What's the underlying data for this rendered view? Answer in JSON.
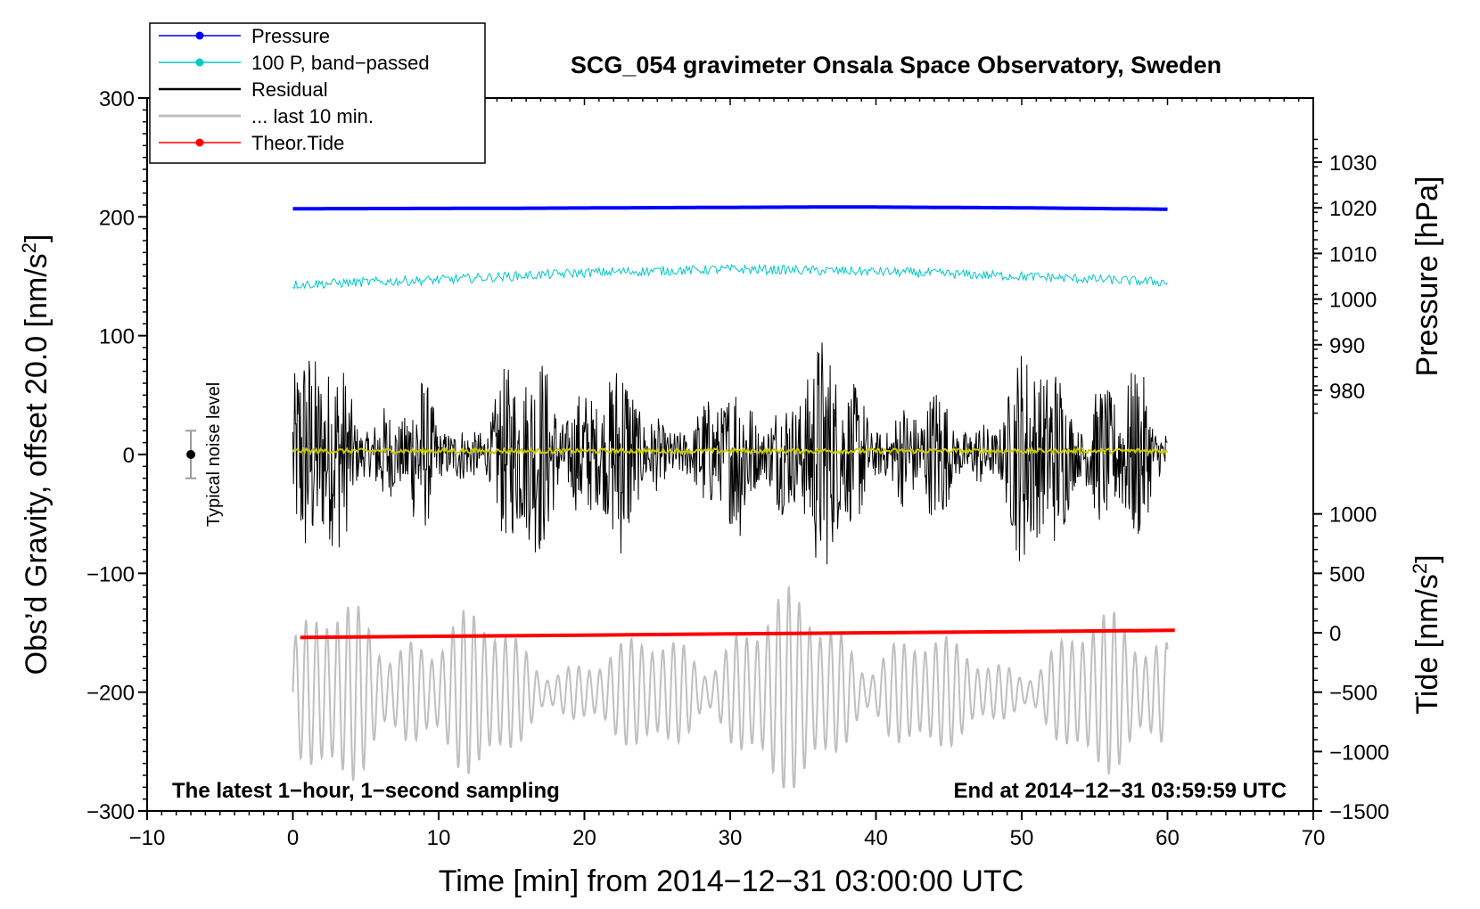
{
  "chart_data": {
    "type": "line",
    "title": "SCG_054 gravimeter Onsala Space Observatory, Sweden",
    "xlabel": "Time [min] from 2014−12−31 03:00:00 UTC",
    "ylabel": "Obs’d Gravity, offset 20.0 [nm/s²]",
    "xlim": [
      -10,
      70
    ],
    "ylim": [
      -300,
      300
    ],
    "x_ticks": [
      -10,
      0,
      10,
      20,
      30,
      40,
      50,
      60,
      70
    ],
    "x_tick_labels": [
      "−10",
      "0",
      "10",
      "20",
      "30",
      "40",
      "50",
      "60",
      "70"
    ],
    "y_ticks": [
      -300,
      -200,
      -100,
      0,
      100,
      200,
      300
    ],
    "y_tick_labels": [
      "−300",
      "−200",
      "−100",
      "0",
      "100",
      "200",
      "300"
    ],
    "right_axis_pressure": {
      "label": "Pressure [hPa]",
      "ticks": [
        980,
        990,
        1000,
        1010,
        1020,
        1030
      ],
      "tick_labels": [
        "980",
        "990",
        "1000",
        "1010",
        "1020",
        "1030"
      ],
      "anchor": [
        [
          980,
          54
        ],
        [
          1030,
          246
        ]
      ]
    },
    "right_axis_tide": {
      "label": "Tide [nm/s²]",
      "ticks": [
        -1500,
        -1000,
        -500,
        0,
        500,
        1000
      ],
      "tick_labels": [
        "−1500",
        "−1000",
        "−500",
        "0",
        "500",
        "1000"
      ],
      "anchor": [
        [
          -1500,
          -300
        ],
        [
          1000,
          -50
        ]
      ]
    },
    "legend": {
      "position": "top-left",
      "entries": [
        {
          "label": "Pressure",
          "color": "#0000ff",
          "marker": true
        },
        {
          "label": "100 P, band−passed",
          "color": "#00c8c8",
          "marker": true
        },
        {
          "label": "Residual",
          "color": "#000000",
          "marker": false
        },
        {
          "label": "... last 10 min.",
          "color": "#bfbfbf",
          "marker": false
        },
        {
          "label": "Theor.Tide",
          "color": "#ff0000",
          "marker": true
        }
      ]
    },
    "series": [
      {
        "name": "Pressure",
        "color": "#0000ff",
        "axis": "pressure",
        "x_range": [
          0,
          60
        ],
        "points": [
          [
            0,
            1019.8
          ],
          [
            15,
            1019.9
          ],
          [
            30,
            1020.1
          ],
          [
            38,
            1020.2
          ],
          [
            50,
            1020.0
          ],
          [
            60,
            1019.7
          ]
        ]
      },
      {
        "name": "100 P, band−passed",
        "color": "#00c8c8",
        "axis": "gravity",
        "x_range": [
          0,
          60
        ],
        "baseline": [
          [
            0,
            143
          ],
          [
            10,
            147
          ],
          [
            20,
            153
          ],
          [
            30,
            156
          ],
          [
            40,
            154
          ],
          [
            50,
            150
          ],
          [
            60,
            145
          ]
        ],
        "noise_amplitude": 4
      },
      {
        "name": "Residual",
        "color": "#000000",
        "axis": "gravity",
        "x_range": [
          0,
          60
        ],
        "mean": 0,
        "min": -105,
        "max": 110
      },
      {
        "name": "Residual (smoothed)",
        "color": "#c8c800",
        "axis": "gravity",
        "x_range": [
          0,
          60
        ],
        "mean": 3,
        "noise_amplitude": 2
      },
      {
        "name": "... last 10 min.",
        "color": "#bfbfbf",
        "axis": "gravity",
        "x_range": [
          0,
          60
        ],
        "center": -200,
        "min": -280,
        "max": -100
      },
      {
        "name": "Theor.Tide",
        "color": "#ff0000",
        "axis": "tide",
        "points": [
          [
            0.5,
            -40
          ],
          [
            10,
            -30
          ],
          [
            20,
            -20
          ],
          [
            30,
            -10
          ],
          [
            40,
            0
          ],
          [
            50,
            10
          ],
          [
            60.5,
            20
          ]
        ]
      }
    ],
    "noise_bar": {
      "label": "Typical noise level",
      "x": -7,
      "center": 0,
      "low": -20,
      "high": 20
    },
    "annotations": {
      "bottom_left": "The latest 1−hour, 1−second sampling",
      "bottom_right": "End at 2014−12−31 03:59:59 UTC"
    }
  }
}
